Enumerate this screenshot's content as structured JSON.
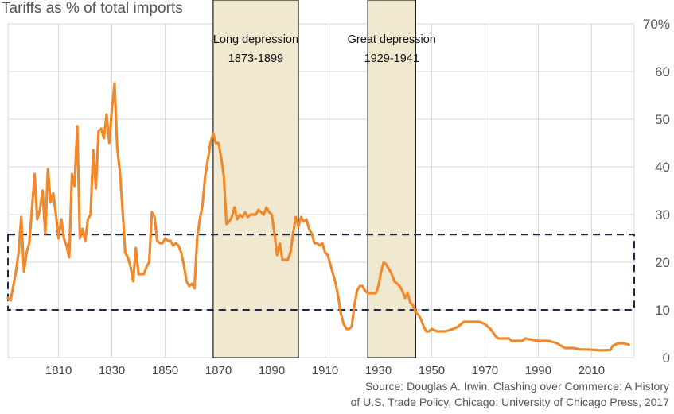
{
  "chart_data": {
    "type": "line",
    "title": "Tariffs as % of total imports",
    "source_lines": [
      "Source: Douglas A. Irwin, Clashing over Commerce: A History",
      "of U.S. Trade Policy, Chicago: University of Chicago Press, 2017"
    ],
    "xlabel": "",
    "ylabel": "",
    "xlim": [
      1791,
      2026
    ],
    "ylim": [
      0,
      70
    ],
    "x_ticks": [
      1810,
      1830,
      1850,
      1870,
      1890,
      1910,
      1930,
      1950,
      1970,
      1990,
      2010
    ],
    "y_ticks": [
      {
        "value": 0,
        "label": "0"
      },
      {
        "value": 10,
        "label": "10"
      },
      {
        "value": 20,
        "label": "20"
      },
      {
        "value": 30,
        "label": "30"
      },
      {
        "value": 40,
        "label": "40"
      },
      {
        "value": 50,
        "label": "50"
      },
      {
        "value": 60,
        "label": "60"
      },
      {
        "value": 70,
        "label": "70%"
      }
    ],
    "grid": true,
    "series_color": "#f0892b",
    "shaded_periods": [
      {
        "label_line1": "Long depression",
        "label_line2": "1873-1899",
        "start": 1868,
        "end": 1900
      },
      {
        "label_line1": "Great depression",
        "label_line2": "1929-1941",
        "start": 1926,
        "end": 1944
      }
    ],
    "band": {
      "low": 10,
      "high": 25.8
    },
    "series": [
      {
        "name": "Tariffs as % of total imports",
        "points": [
          [
            1791,
            12.5
          ],
          [
            1792,
            12
          ],
          [
            1793,
            15
          ],
          [
            1794,
            18
          ],
          [
            1795,
            22
          ],
          [
            1796,
            29.5
          ],
          [
            1797,
            18
          ],
          [
            1798,
            22
          ],
          [
            1799,
            24
          ],
          [
            1800,
            31
          ],
          [
            1801,
            38.5
          ],
          [
            1802,
            29
          ],
          [
            1803,
            31
          ],
          [
            1804,
            35
          ],
          [
            1805,
            26
          ],
          [
            1806,
            39.5
          ],
          [
            1807,
            32.5
          ],
          [
            1808,
            34.5
          ],
          [
            1809,
            30
          ],
          [
            1810,
            25
          ],
          [
            1811,
            29
          ],
          [
            1812,
            25
          ],
          [
            1813,
            23.5
          ],
          [
            1814,
            21
          ],
          [
            1815,
            38.5
          ],
          [
            1816,
            36
          ],
          [
            1817,
            48.5
          ],
          [
            1818,
            25
          ],
          [
            1819,
            27
          ],
          [
            1820,
            24.5
          ],
          [
            1821,
            29
          ],
          [
            1822,
            30
          ],
          [
            1823,
            43.5
          ],
          [
            1824,
            35.5
          ],
          [
            1825,
            47.5
          ],
          [
            1826,
            48
          ],
          [
            1827,
            46
          ],
          [
            1828,
            51
          ],
          [
            1829,
            45
          ],
          [
            1830,
            52
          ],
          [
            1831,
            57.5
          ],
          [
            1832,
            44
          ],
          [
            1833,
            39
          ],
          [
            1834,
            31
          ],
          [
            1835,
            22
          ],
          [
            1836,
            21
          ],
          [
            1837,
            19
          ],
          [
            1838,
            16
          ],
          [
            1839,
            23
          ],
          [
            1840,
            17.5
          ],
          [
            1841,
            17.5
          ],
          [
            1842,
            17.5
          ],
          [
            1843,
            19
          ],
          [
            1844,
            20
          ],
          [
            1845,
            30.5
          ],
          [
            1846,
            29.5
          ],
          [
            1847,
            24.5
          ],
          [
            1848,
            24
          ],
          [
            1849,
            24
          ],
          [
            1850,
            25
          ],
          [
            1851,
            24.5
          ],
          [
            1852,
            24.5
          ],
          [
            1853,
            23.5
          ],
          [
            1854,
            24
          ],
          [
            1855,
            23.5
          ],
          [
            1856,
            22
          ],
          [
            1857,
            19.5
          ],
          [
            1858,
            16
          ],
          [
            1859,
            15
          ],
          [
            1860,
            15.5
          ],
          [
            1861,
            14.5
          ],
          [
            1862,
            25
          ],
          [
            1863,
            29
          ],
          [
            1864,
            32
          ],
          [
            1865,
            38
          ],
          [
            1866,
            41.5
          ],
          [
            1867,
            45
          ],
          [
            1868,
            47
          ],
          [
            1869,
            45
          ],
          [
            1870,
            45
          ],
          [
            1871,
            42
          ],
          [
            1872,
            38
          ],
          [
            1873,
            28
          ],
          [
            1874,
            28.5
          ],
          [
            1875,
            29.5
          ],
          [
            1876,
            31.5
          ],
          [
            1877,
            29
          ],
          [
            1878,
            30
          ],
          [
            1879,
            29.5
          ],
          [
            1880,
            30.5
          ],
          [
            1881,
            29.5
          ],
          [
            1882,
            30
          ],
          [
            1883,
            30
          ],
          [
            1884,
            30
          ],
          [
            1885,
            31
          ],
          [
            1886,
            30.5
          ],
          [
            1887,
            30
          ],
          [
            1888,
            31.5
          ],
          [
            1889,
            30.5
          ],
          [
            1890,
            30
          ],
          [
            1891,
            26
          ],
          [
            1892,
            21.5
          ],
          [
            1893,
            24
          ],
          [
            1894,
            20.5
          ],
          [
            1895,
            20.5
          ],
          [
            1896,
            20.5
          ],
          [
            1897,
            22
          ],
          [
            1898,
            26
          ],
          [
            1899,
            29.5
          ],
          [
            1900,
            27.5
          ],
          [
            1901,
            29.5
          ],
          [
            1902,
            28.5
          ],
          [
            1903,
            29
          ],
          [
            1904,
            27
          ],
          [
            1905,
            26
          ],
          [
            1906,
            24
          ],
          [
            1907,
            24
          ],
          [
            1908,
            23.5
          ],
          [
            1909,
            24
          ],
          [
            1910,
            22
          ],
          [
            1911,
            21.5
          ],
          [
            1912,
            19.5
          ],
          [
            1913,
            17.5
          ],
          [
            1914,
            15.5
          ],
          [
            1915,
            12.5
          ],
          [
            1916,
            9
          ],
          [
            1917,
            7
          ],
          [
            1918,
            6
          ],
          [
            1919,
            6
          ],
          [
            1920,
            6.5
          ],
          [
            1921,
            11
          ],
          [
            1922,
            14
          ],
          [
            1923,
            15
          ],
          [
            1924,
            15
          ],
          [
            1925,
            14
          ],
          [
            1926,
            13.5
          ],
          [
            1927,
            13.5
          ],
          [
            1928,
            13.5
          ],
          [
            1929,
            13.5
          ],
          [
            1930,
            15
          ],
          [
            1931,
            18
          ],
          [
            1932,
            20
          ],
          [
            1933,
            19.5
          ],
          [
            1934,
            18.5
          ],
          [
            1935,
            17.5
          ],
          [
            1936,
            16
          ],
          [
            1937,
            15.5
          ],
          [
            1938,
            15
          ],
          [
            1939,
            14
          ],
          [
            1940,
            12.5
          ],
          [
            1941,
            13.5
          ],
          [
            1942,
            11.5
          ],
          [
            1943,
            11
          ],
          [
            1944,
            9.5
          ],
          [
            1945,
            9
          ],
          [
            1946,
            8
          ],
          [
            1947,
            6.5
          ],
          [
            1948,
            5.5
          ],
          [
            1949,
            5.5
          ],
          [
            1950,
            6
          ],
          [
            1952,
            5.5
          ],
          [
            1955,
            5.5
          ],
          [
            1958,
            6
          ],
          [
            1960,
            6.5
          ],
          [
            1962,
            7.5
          ],
          [
            1964,
            7.5
          ],
          [
            1966,
            7.5
          ],
          [
            1968,
            7.5
          ],
          [
            1970,
            7
          ],
          [
            1972,
            6
          ],
          [
            1974,
            4.5
          ],
          [
            1975,
            4
          ],
          [
            1977,
            4
          ],
          [
            1979,
            4
          ],
          [
            1980,
            3.5
          ],
          [
            1982,
            3.5
          ],
          [
            1984,
            3.5
          ],
          [
            1985,
            4
          ],
          [
            1987,
            3.8
          ],
          [
            1990,
            3.5
          ],
          [
            1994,
            3.5
          ],
          [
            1997,
            3
          ],
          [
            2000,
            2
          ],
          [
            2003,
            2
          ],
          [
            2006,
            1.7
          ],
          [
            2008,
            1.7
          ],
          [
            2011,
            1.6
          ],
          [
            2014,
            1.5
          ],
          [
            2017,
            1.6
          ],
          [
            2018,
            2.5
          ],
          [
            2020,
            3
          ],
          [
            2022,
            3
          ],
          [
            2024,
            2.7
          ]
        ]
      }
    ]
  }
}
